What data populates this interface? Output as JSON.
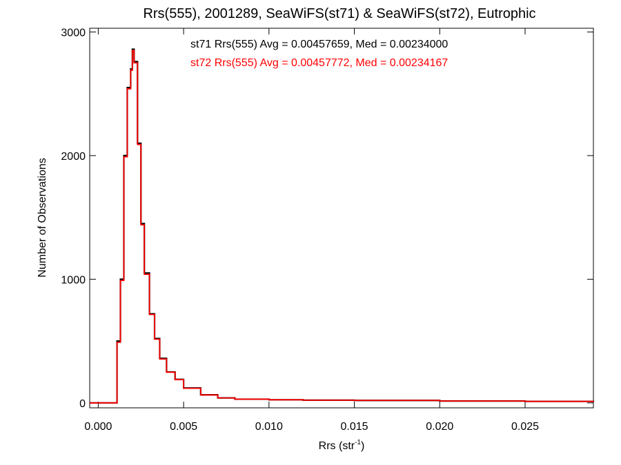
{
  "chart_data": {
    "type": "histogram",
    "title": "Rrs(555), 2001289, SeaWiFS(st71) & SeaWiFS(st72), Eutrophic",
    "xlabel": {
      "text": "Rrs (str",
      "sup": "-1",
      "close": ")"
    },
    "ylabel": "Number of Observations",
    "xlim": [
      -0.0005,
      0.029
    ],
    "ylim": [
      -40,
      3030
    ],
    "xticks": [
      0.0,
      0.005,
      0.01,
      0.015,
      0.02,
      0.025
    ],
    "xtick_labels": [
      "0.000",
      "0.005",
      "0.010",
      "0.015",
      "0.020",
      "0.025"
    ],
    "yticks": [
      0,
      1000,
      2000,
      3000
    ],
    "ytick_labels": [
      "0",
      "1000",
      "2000",
      "3000"
    ],
    "grid": false,
    "colors": {
      "st71": "#000000",
      "st72": "#ff0000"
    },
    "annotations": [
      {
        "text": "st71 Rrs(555) Avg = 0.00457659, Med = 0.00234000",
        "color": "#000000"
      },
      {
        "text": "st72 Rrs(555) Avg = 0.00457772, Med = 0.00234167",
        "color": "#ff0000"
      }
    ],
    "series": [
      {
        "name": "st71",
        "x": [
          0.0008,
          0.0011,
          0.0013,
          0.0015,
          0.0017,
          0.0019,
          0.002,
          0.0021,
          0.0023,
          0.0025,
          0.0027,
          0.003,
          0.0033,
          0.0036,
          0.004,
          0.0045,
          0.005,
          0.006,
          0.007,
          0.008,
          0.01,
          0.012,
          0.015,
          0.02,
          0.025,
          0.029
        ],
        "y": [
          0,
          500,
          1000,
          2000,
          2550,
          2700,
          2860,
          2760,
          2100,
          1450,
          1050,
          720,
          520,
          360,
          250,
          190,
          120,
          65,
          40,
          30,
          25,
          22,
          20,
          15,
          12,
          8
        ]
      },
      {
        "name": "st72",
        "x": [
          0.0008,
          0.0011,
          0.0013,
          0.0015,
          0.0017,
          0.0019,
          0.002,
          0.0021,
          0.0023,
          0.0025,
          0.0027,
          0.003,
          0.0033,
          0.0036,
          0.004,
          0.0045,
          0.005,
          0.006,
          0.007,
          0.008,
          0.01,
          0.012,
          0.015,
          0.02,
          0.025,
          0.029
        ],
        "y": [
          0,
          490,
          990,
          1990,
          2540,
          2690,
          2850,
          2750,
          2090,
          1440,
          1040,
          715,
          515,
          355,
          248,
          188,
          118,
          64,
          40,
          30,
          25,
          22,
          20,
          15,
          12,
          8
        ]
      }
    ]
  }
}
